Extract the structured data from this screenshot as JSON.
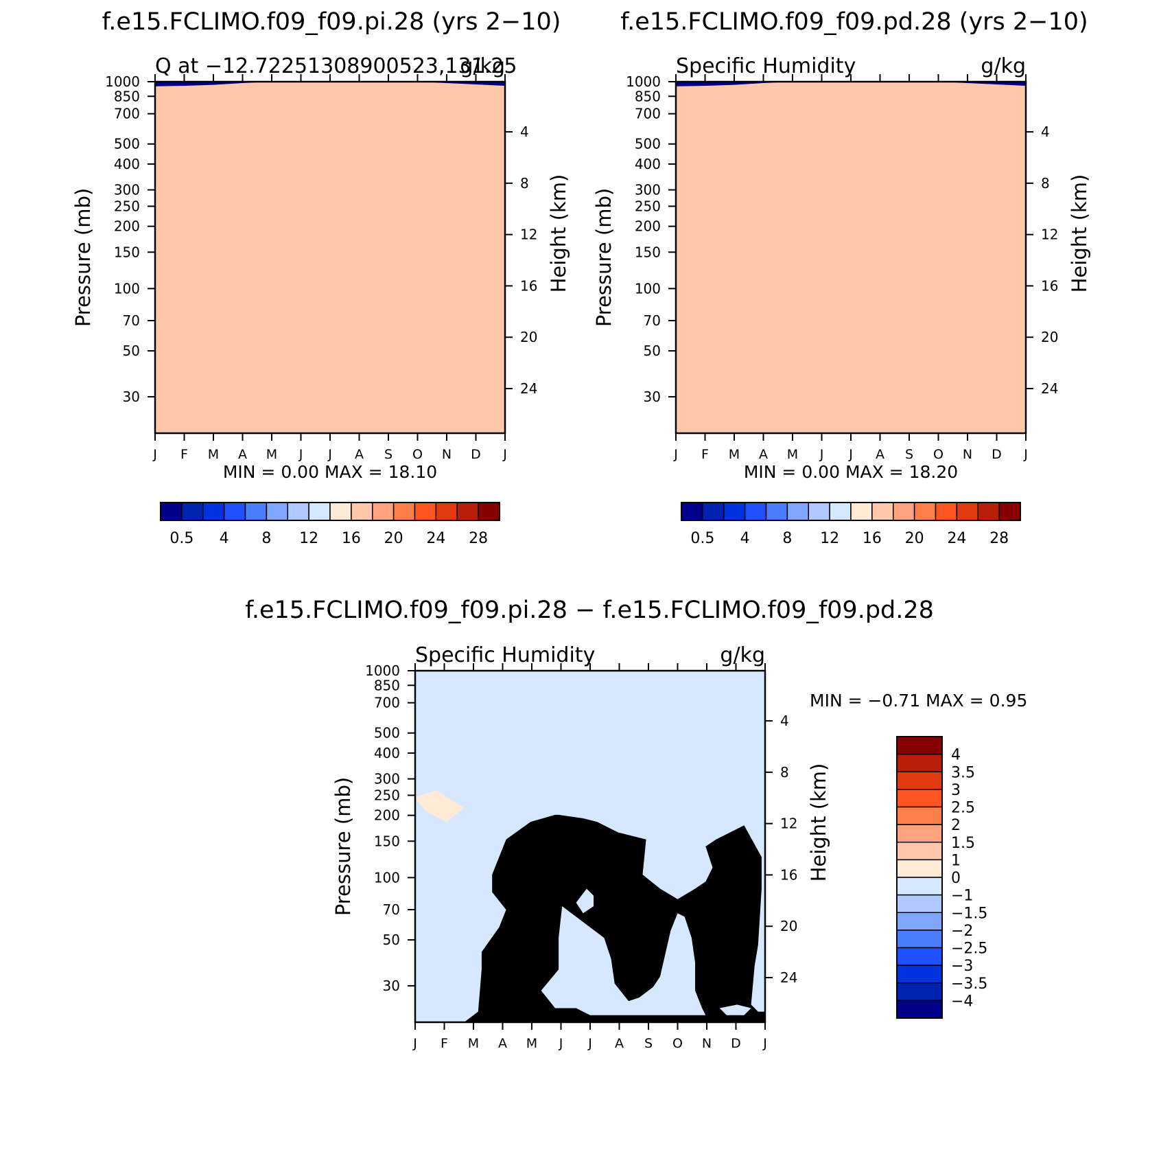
{
  "months": [
    "J",
    "F",
    "M",
    "A",
    "M",
    "J",
    "J",
    "A",
    "S",
    "O",
    "N",
    "D",
    "J"
  ],
  "pressure_ticks": [
    30,
    50,
    70,
    100,
    150,
    200,
    250,
    300,
    400,
    500,
    700,
    850,
    1000
  ],
  "height_ticks": [
    24,
    20,
    16,
    12,
    8,
    4
  ],
  "yaxis_left_label": "Pressure (mb)",
  "yaxis_right_label": "Height (km)",
  "panels": [
    {
      "title": "f.e15.FCLIMO.f09_f09.pi.28 (yrs 2−10)",
      "left_string": "Q at −12.72251308900523,131.25",
      "right_string": "g/kg",
      "stats": "MIN =     0.00  MAX =    18.10"
    },
    {
      "title": "f.e15.FCLIMO.f09_f09.pd.28 (yrs 2−10)",
      "left_string": "Specific Humidity",
      "right_string": "g/kg",
      "stats": "MIN =     0.00  MAX =    18.20"
    },
    {
      "title": "f.e15.FCLIMO.f09_f09.pi.28 − f.e15.FCLIMO.f09_f09.pd.28",
      "left_string": "Specific Humidity",
      "right_string": "g/kg",
      "stats": "MIN =   −0.71  MAX =     0.95"
    }
  ],
  "colorbar_abs": {
    "labels": [
      "0.5",
      "4",
      "8",
      "12",
      "16",
      "20",
      "24",
      "28"
    ],
    "colors": [
      "#00008b",
      "#0022b0",
      "#0033dd",
      "#1e50ff",
      "#4a7cff",
      "#80a6ff",
      "#b0c8ff",
      "#d6e8ff",
      "#ffead6",
      "#ffc8aa",
      "#ffa37f",
      "#ff7f4a",
      "#ff5522",
      "#e23a10",
      "#b91e0a",
      "#870000"
    ]
  },
  "colorbar_diff": {
    "labels": [
      "4",
      "3.5",
      "3",
      "2.5",
      "2",
      "1.5",
      "1",
      "0",
      "−1",
      "−1.5",
      "−2",
      "−2.5",
      "−3",
      "−3.5",
      "−4"
    ],
    "colors": [
      "#870000",
      "#b91e0a",
      "#e23a10",
      "#ff5522",
      "#ff7f4a",
      "#ffa37f",
      "#ffc8aa",
      "#ffead6",
      "#d6e8ff",
      "#b0c8ff",
      "#80a6ff",
      "#4a7cff",
      "#1e50ff",
      "#0033dd",
      "#0022b0",
      "#00008b"
    ]
  },
  "chart_data": [
    {
      "type": "heatmap",
      "title": "f.e15.FCLIMO.f09_f09.pi.28 (yrs 2−10)",
      "xlabel": "",
      "ylabel": "Pressure (mb)",
      "y2label": "Height (km)",
      "x": [
        "J",
        "F",
        "M",
        "A",
        "M",
        "J",
        "J",
        "A",
        "S",
        "O",
        "N",
        "D",
        "J"
      ],
      "ylim": [
        1000,
        20
      ],
      "levels": [
        0.5,
        2,
        4,
        6,
        8,
        10,
        12,
        14,
        16,
        18,
        20,
        22,
        24,
        26,
        28
      ],
      "note_units": "g/kg",
      "min": 0.0,
      "max": 18.1
    },
    {
      "type": "heatmap",
      "title": "f.e15.FCLIMO.f09_f09.pd.28 (yrs 2−10)",
      "xlabel": "",
      "ylabel": "Pressure (mb)",
      "y2label": "Height (km)",
      "x": [
        "J",
        "F",
        "M",
        "A",
        "M",
        "J",
        "J",
        "A",
        "S",
        "O",
        "N",
        "D",
        "J"
      ],
      "ylim": [
        1000,
        20
      ],
      "levels": [
        0.5,
        2,
        4,
        6,
        8,
        10,
        12,
        14,
        16,
        18,
        20,
        22,
        24,
        26,
        28
      ],
      "note_units": "g/kg",
      "min": 0.0,
      "max": 18.2
    },
    {
      "type": "heatmap",
      "title": "f.e15.FCLIMO.f09_f09.pi.28 − f.e15.FCLIMO.f09_f09.pd.28",
      "xlabel": "",
      "ylabel": "Pressure (mb)",
      "y2label": "Height (km)",
      "x": [
        "J",
        "F",
        "M",
        "A",
        "M",
        "J",
        "J",
        "A",
        "S",
        "O",
        "N",
        "D",
        "J"
      ],
      "ylim": [
        1000,
        20
      ],
      "levels": [
        -4,
        -3.5,
        -3,
        -2.5,
        -2,
        -1.5,
        -1,
        0,
        1,
        1.5,
        2,
        2.5,
        3,
        3.5,
        4
      ],
      "note_units": "g/kg",
      "min": -0.71,
      "max": 0.95
    }
  ]
}
